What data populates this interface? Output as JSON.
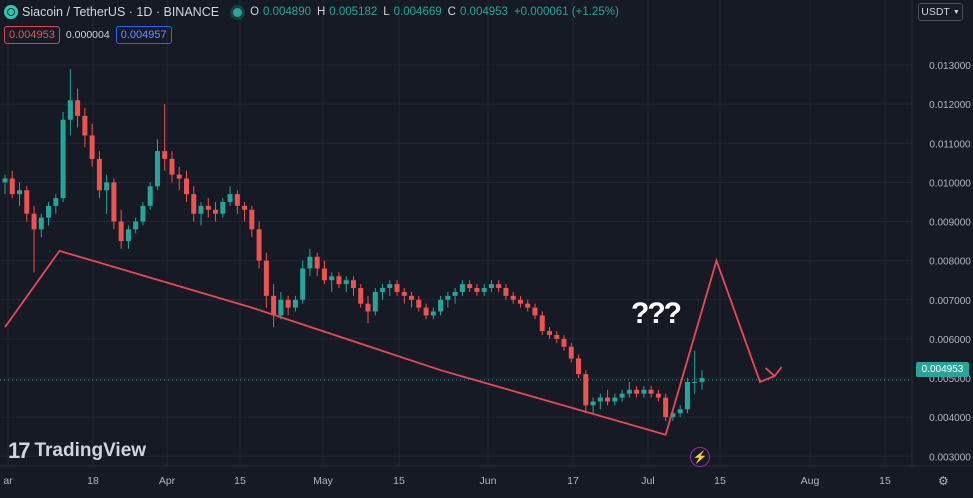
{
  "header": {
    "title": "Siacoin / TetherUS · 1D · BINANCE",
    "open_label": "O",
    "open_value": "0.004890",
    "high_label": "H",
    "high_value": "0.005182",
    "low_label": "L",
    "low_value": "0.004669",
    "close_label": "C",
    "close_value": "0.004953",
    "change": "+0.000061 (+1.25%)"
  },
  "order": {
    "sell_price": "0.004953",
    "spread": "0.000004",
    "buy_price": "0.004957"
  },
  "currency_button": "USDT",
  "current_price_tag": "0.004953",
  "annotation_text": "???",
  "brand": {
    "name": "TradingView"
  },
  "colors": {
    "up": "#26a69a",
    "down": "#ef5350",
    "drawing": "#e84858",
    "background": "#161a25",
    "grid": "#232735"
  },
  "chart_data": {
    "type": "candlestick",
    "x_tick_labels": [
      "ar",
      "18",
      "Apr",
      "15",
      "May",
      "15",
      "Jun",
      "17",
      "Jul",
      "15",
      "Aug",
      "15"
    ],
    "y_tick_labels": [
      "0.013000",
      "0.012000",
      "0.011000",
      "0.010000",
      "0.009000",
      "0.008000",
      "0.007000",
      "0.006000",
      "0.005000",
      "0.004000",
      "0.003000"
    ],
    "ylim": [
      0.0027,
      0.0141
    ],
    "grid": true,
    "current_price": 0.004953,
    "candles": [
      [
        0.01,
        0.0102,
        0.0097,
        0.0101
      ],
      [
        0.0101,
        0.0103,
        0.0096,
        0.0097
      ],
      [
        0.0097,
        0.01,
        0.0094,
        0.0098
      ],
      [
        0.0098,
        0.0099,
        0.009,
        0.0092
      ],
      [
        0.0092,
        0.0094,
        0.0077,
        0.0088
      ],
      [
        0.0088,
        0.0092,
        0.0086,
        0.0091
      ],
      [
        0.0091,
        0.0095,
        0.0089,
        0.0094
      ],
      [
        0.0094,
        0.0097,
        0.0092,
        0.0096
      ],
      [
        0.0096,
        0.0118,
        0.0095,
        0.0116
      ],
      [
        0.0116,
        0.0129,
        0.0112,
        0.0121
      ],
      [
        0.0121,
        0.0124,
        0.0114,
        0.0117
      ],
      [
        0.0117,
        0.0119,
        0.0109,
        0.0112
      ],
      [
        0.0112,
        0.0115,
        0.0104,
        0.0106
      ],
      [
        0.0106,
        0.0108,
        0.0096,
        0.0098
      ],
      [
        0.0098,
        0.0102,
        0.0092,
        0.01
      ],
      [
        0.01,
        0.0101,
        0.0088,
        0.009
      ],
      [
        0.009,
        0.0093,
        0.0083,
        0.0085
      ],
      [
        0.0085,
        0.0089,
        0.0083,
        0.0088
      ],
      [
        0.0088,
        0.0091,
        0.0087,
        0.009
      ],
      [
        0.009,
        0.0095,
        0.0089,
        0.0094
      ],
      [
        0.0094,
        0.01,
        0.0093,
        0.0099
      ],
      [
        0.0099,
        0.0111,
        0.0098,
        0.0108
      ],
      [
        0.0108,
        0.012,
        0.0103,
        0.0106
      ],
      [
        0.0106,
        0.0108,
        0.01,
        0.0102
      ],
      [
        0.0102,
        0.0104,
        0.0098,
        0.0101
      ],
      [
        0.0101,
        0.0103,
        0.0095,
        0.0097
      ],
      [
        0.0097,
        0.0099,
        0.009,
        0.0092
      ],
      [
        0.0092,
        0.0095,
        0.0089,
        0.0094
      ],
      [
        0.0094,
        0.0096,
        0.0091,
        0.0093
      ],
      [
        0.0093,
        0.0095,
        0.009,
        0.0092
      ],
      [
        0.0092,
        0.0096,
        0.0091,
        0.0095
      ],
      [
        0.0095,
        0.0099,
        0.0094,
        0.0097
      ],
      [
        0.0097,
        0.0098,
        0.0092,
        0.0094
      ],
      [
        0.0094,
        0.0095,
        0.009,
        0.0093
      ],
      [
        0.0093,
        0.0094,
        0.0086,
        0.0088
      ],
      [
        0.0088,
        0.009,
        0.0078,
        0.008
      ],
      [
        0.008,
        0.0082,
        0.0068,
        0.0071
      ],
      [
        0.0071,
        0.0074,
        0.0063,
        0.0066
      ],
      [
        0.0066,
        0.0072,
        0.0065,
        0.007
      ],
      [
        0.007,
        0.0071,
        0.0066,
        0.0068
      ],
      [
        0.0068,
        0.0071,
        0.0067,
        0.007
      ],
      [
        0.007,
        0.008,
        0.0069,
        0.0078
      ],
      [
        0.0078,
        0.0083,
        0.0076,
        0.0081
      ],
      [
        0.0081,
        0.0082,
        0.0076,
        0.0078
      ],
      [
        0.0078,
        0.008,
        0.0074,
        0.0075
      ],
      [
        0.0075,
        0.0077,
        0.0072,
        0.0076
      ],
      [
        0.0076,
        0.0077,
        0.0073,
        0.0074
      ],
      [
        0.0074,
        0.0076,
        0.0072,
        0.0075
      ],
      [
        0.0075,
        0.0076,
        0.0071,
        0.0073
      ],
      [
        0.0073,
        0.0074,
        0.0068,
        0.0069
      ],
      [
        0.0069,
        0.0071,
        0.0064,
        0.0067
      ],
      [
        0.0067,
        0.0073,
        0.0066,
        0.0072
      ],
      [
        0.0072,
        0.0074,
        0.007,
        0.0073
      ],
      [
        0.0073,
        0.0075,
        0.0071,
        0.0074
      ],
      [
        0.0074,
        0.0075,
        0.0071,
        0.0072
      ],
      [
        0.0072,
        0.0073,
        0.0069,
        0.0071
      ],
      [
        0.0071,
        0.0072,
        0.0068,
        0.007
      ],
      [
        0.007,
        0.0071,
        0.0067,
        0.0068
      ],
      [
        0.0068,
        0.0069,
        0.0065,
        0.0066
      ],
      [
        0.0066,
        0.0068,
        0.0065,
        0.0067
      ],
      [
        0.0067,
        0.0071,
        0.0066,
        0.007
      ],
      [
        0.007,
        0.0072,
        0.0068,
        0.0071
      ],
      [
        0.0071,
        0.0073,
        0.0069,
        0.0072
      ],
      [
        0.0072,
        0.0075,
        0.0071,
        0.0074
      ],
      [
        0.0074,
        0.0075,
        0.0072,
        0.0073
      ],
      [
        0.0073,
        0.0074,
        0.0071,
        0.0072
      ],
      [
        0.0072,
        0.0074,
        0.0071,
        0.0073
      ],
      [
        0.0073,
        0.0075,
        0.0072,
        0.0074
      ],
      [
        0.0074,
        0.0075,
        0.0072,
        0.0073
      ],
      [
        0.0073,
        0.0074,
        0.007,
        0.0071
      ],
      [
        0.0071,
        0.0072,
        0.0069,
        0.007
      ],
      [
        0.007,
        0.0071,
        0.0068,
        0.0069
      ],
      [
        0.0069,
        0.007,
        0.0067,
        0.0068
      ],
      [
        0.0068,
        0.0069,
        0.0065,
        0.0066
      ],
      [
        0.0066,
        0.0067,
        0.0061,
        0.0062
      ],
      [
        0.0062,
        0.0063,
        0.006,
        0.0061
      ],
      [
        0.0061,
        0.0062,
        0.0059,
        0.006
      ],
      [
        0.006,
        0.0061,
        0.0057,
        0.0058
      ],
      [
        0.0058,
        0.0059,
        0.0054,
        0.0055
      ],
      [
        0.0055,
        0.0056,
        0.005,
        0.0051
      ],
      [
        0.0051,
        0.0052,
        0.0041,
        0.0043
      ],
      [
        0.0043,
        0.0045,
        0.0041,
        0.0044
      ],
      [
        0.0044,
        0.0046,
        0.0042,
        0.0045
      ],
      [
        0.0045,
        0.0047,
        0.0043,
        0.0044
      ],
      [
        0.0044,
        0.0046,
        0.0043,
        0.0045
      ],
      [
        0.0045,
        0.0047,
        0.0044,
        0.0046
      ],
      [
        0.0046,
        0.0049,
        0.0045,
        0.0047
      ],
      [
        0.0047,
        0.0048,
        0.0045,
        0.0046
      ],
      [
        0.0046,
        0.0048,
        0.0045,
        0.0047
      ],
      [
        0.0047,
        0.0048,
        0.0045,
        0.0046
      ],
      [
        0.0046,
        0.0047,
        0.0044,
        0.0045
      ],
      [
        0.0045,
        0.0046,
        0.0039,
        0.004
      ],
      [
        0.004,
        0.0042,
        0.0039,
        0.0041
      ],
      [
        0.0041,
        0.0043,
        0.004,
        0.0042
      ],
      [
        0.0042,
        0.005,
        0.0041,
        0.0049
      ],
      [
        0.0049,
        0.0057,
        0.0046,
        0.0049
      ],
      [
        0.0049,
        0.0052,
        0.0047,
        0.005
      ]
    ],
    "drawing_path": [
      [
        0,
        0.0063
      ],
      [
        7.5,
        0.00825
      ],
      [
        34,
        0.0068
      ],
      [
        60,
        0.0052
      ],
      [
        91,
        0.00355
      ],
      [
        98,
        0.008
      ],
      [
        104,
        0.0049
      ],
      [
        106,
        0.00505
      ]
    ]
  }
}
